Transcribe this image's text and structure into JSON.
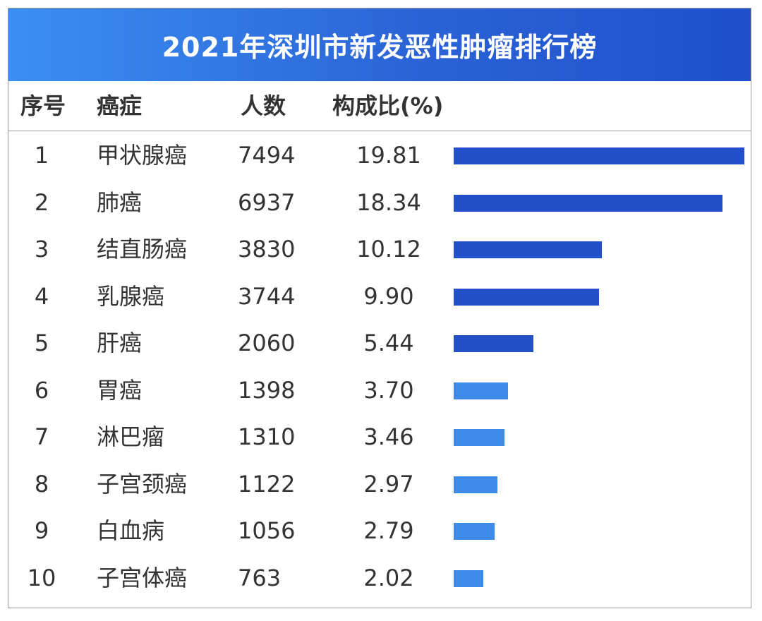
{
  "title": "2021年深圳市新发恶性肿瘤排行榜",
  "headers": {
    "rank": "序号",
    "cancer": "癌症",
    "count": "人数",
    "pct": "构成比(%)"
  },
  "colors": {
    "bar_dark": "#2350c8",
    "bar_light": "#3d8ae8"
  },
  "chart_data": {
    "type": "table",
    "title": "2021年深圳市新发恶性肿瘤排行榜",
    "columns": [
      "序号",
      "癌症",
      "人数",
      "构成比(%)"
    ],
    "rows": [
      {
        "rank": "1",
        "name": "甲状腺癌",
        "count": "7494",
        "pct": "19.81",
        "pct_value": 19.81
      },
      {
        "rank": "2",
        "name": "肺癌",
        "count": "6937",
        "pct": "18.34",
        "pct_value": 18.34
      },
      {
        "rank": "3",
        "name": "结直肠癌",
        "count": "3830",
        "pct": "10.12",
        "pct_value": 10.12
      },
      {
        "rank": "4",
        "name": "乳腺癌",
        "count": "3744",
        "pct": "9.90",
        "pct_value": 9.9
      },
      {
        "rank": "5",
        "name": "肝癌",
        "count": "2060",
        "pct": "5.44",
        "pct_value": 5.44
      },
      {
        "rank": "6",
        "name": "胃癌",
        "count": "1398",
        "pct": "3.70",
        "pct_value": 3.7
      },
      {
        "rank": "7",
        "name": "淋巴瘤",
        "count": "1310",
        "pct": "3.46",
        "pct_value": 3.46
      },
      {
        "rank": "8",
        "name": "子宫颈癌",
        "count": "1122",
        "pct": "2.97",
        "pct_value": 2.97
      },
      {
        "rank": "9",
        "name": "白血病",
        "count": "1056",
        "pct": "2.79",
        "pct_value": 2.79
      },
      {
        "rank": "10",
        "name": "子宫体癌",
        "count": "763",
        "pct": "2.02",
        "pct_value": 2.02
      }
    ]
  }
}
